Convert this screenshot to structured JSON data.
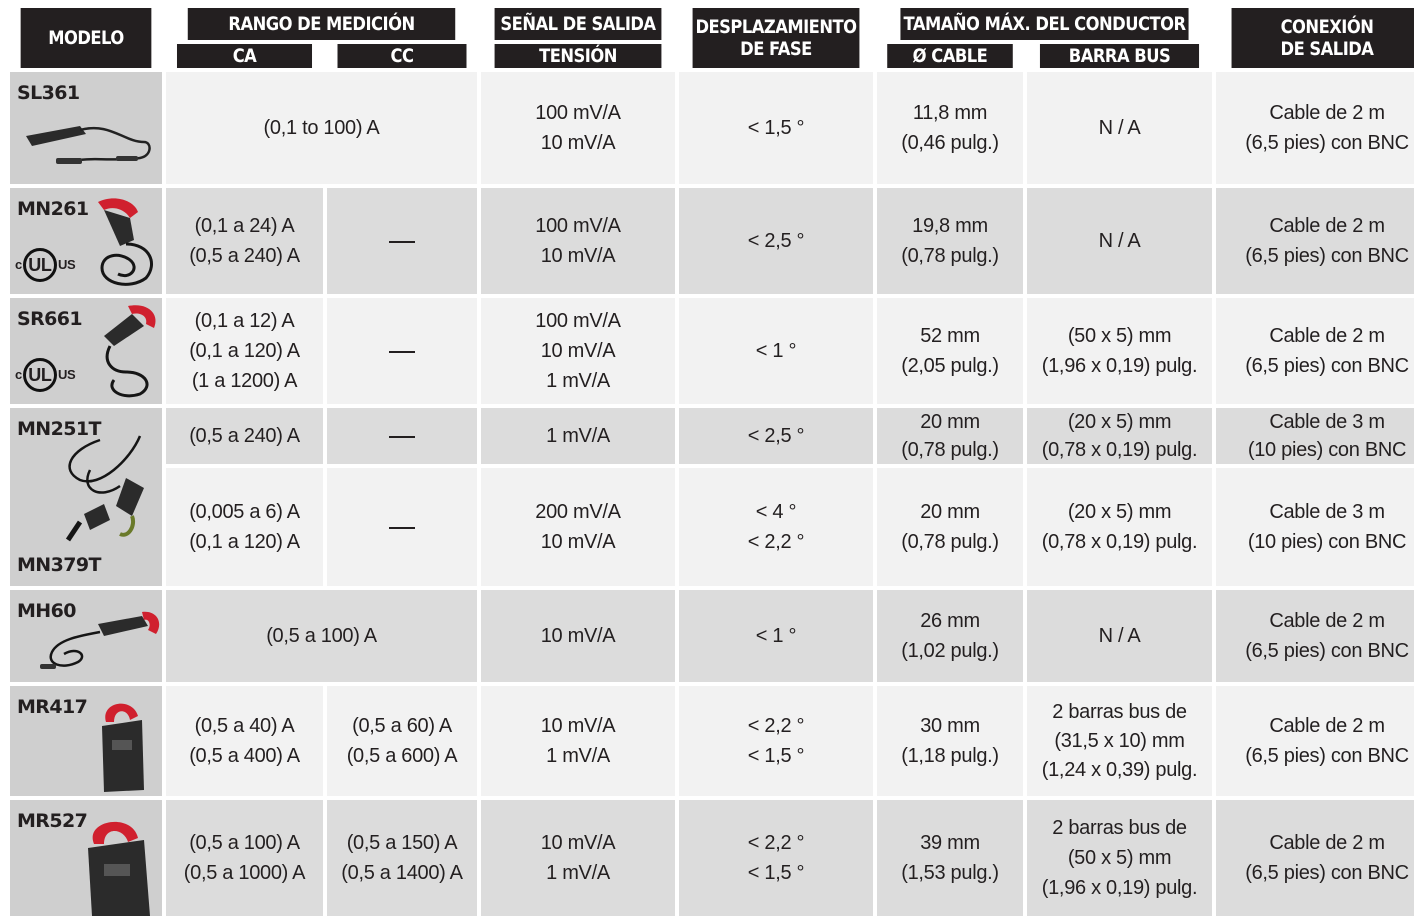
{
  "headers": {
    "model": "MODELO",
    "range": "RANGO DE MEDICIÓN",
    "ac": "CA",
    "dc": "CC",
    "signal": "SEÑAL DE SALIDA",
    "voltage": "TENSIÓN",
    "phase": [
      "DESPLAZAMIENTO",
      "DE FASE"
    ],
    "conductor": "TAMAÑO MÁX. DEL CONDUCTOR",
    "cable": "Ø CABLE",
    "busbar": "BARRA BUS",
    "connection": [
      "CONEXIÓN",
      "DE SALIDA"
    ]
  },
  "rows": [
    {
      "model": "SL361",
      "range_merged": "(0,1 to 100) A",
      "voltage": [
        "100 mV/A",
        "10 mV/A"
      ],
      "phase": [
        "< 1,5 °"
      ],
      "cable": [
        "11,8 mm",
        "(0,46 pulg.)"
      ],
      "busbar": [
        "N / A"
      ],
      "connection": [
        "Cable de 2 m",
        "(6,5 pies) con BNC"
      ]
    },
    {
      "model": "MN261",
      "ul": true,
      "ac": [
        "(0,1 a 24) A",
        "(0,5 a 240) A"
      ],
      "dc": "—",
      "voltage": [
        "100 mV/A",
        "10 mV/A"
      ],
      "phase": [
        "< 2,5 °"
      ],
      "cable": [
        "19,8 mm",
        "(0,78 pulg.)"
      ],
      "busbar": [
        "N / A"
      ],
      "connection": [
        "Cable de 2 m",
        "(6,5 pies) con BNC"
      ]
    },
    {
      "model": "SR661",
      "ul": true,
      "ac": [
        "(0,1 a 12) A",
        "(0,1 a 120) A",
        "(1 a 1200) A"
      ],
      "dc": "—",
      "voltage": [
        "100 mV/A",
        "10 mV/A",
        "1 mV/A"
      ],
      "phase": [
        "< 1 °"
      ],
      "cable": [
        "52 mm",
        "(2,05 pulg.)"
      ],
      "busbar": [
        "(50 x 5) mm",
        "(1,96 x 0,19) pulg."
      ],
      "connection": [
        "Cable de 2 m",
        "(6,5 pies) con BNC"
      ]
    },
    {
      "model": "MN251T",
      "model_bottom": "MN379T",
      "ac": [
        "(0,5 a 240) A"
      ],
      "dc": "—",
      "voltage": [
        "1 mV/A"
      ],
      "phase": [
        "< 2,5 °"
      ],
      "cable": [
        "20 mm",
        "(0,78 pulg.)"
      ],
      "busbar": [
        "(20 x 5) mm",
        "(0,78 x 0,19) pulg."
      ],
      "connection": [
        "Cable de 3 m",
        "(10 pies) con BNC"
      ]
    },
    {
      "ac": [
        "(0,005 a 6) A",
        "(0,1 a 120) A"
      ],
      "dc": "—",
      "voltage": [
        "200 mV/A",
        "10 mV/A"
      ],
      "phase": [
        "< 4 °",
        "< 2,2 °"
      ],
      "cable": [
        "20 mm",
        "(0,78 pulg.)"
      ],
      "busbar": [
        "(20 x 5) mm",
        "(0,78 x 0,19) pulg."
      ],
      "connection": [
        "Cable de 3 m",
        "(10 pies) con BNC"
      ]
    },
    {
      "model": "MH60",
      "range_merged": "(0,5 a 100) A",
      "voltage": [
        "10 mV/A"
      ],
      "phase": [
        "< 1 °"
      ],
      "cable": [
        "26 mm",
        "(1,02 pulg.)"
      ],
      "busbar": [
        "N / A"
      ],
      "connection": [
        "Cable de 2 m",
        "(6,5 pies) con BNC"
      ]
    },
    {
      "model": "MR417",
      "ac": [
        "(0,5 a 40) A",
        "(0,5 a 400) A"
      ],
      "dc": [
        "(0,5 a 60) A",
        "(0,5 a 600) A"
      ],
      "voltage": [
        "10 mV/A",
        "1 mV/A"
      ],
      "phase": [
        "< 2,2 °",
        "< 1,5 °"
      ],
      "cable": [
        "30 mm",
        "(1,18 pulg.)"
      ],
      "busbar": [
        "2 barras bus de",
        "(31,5 x 10) mm",
        "(1,24 x 0,39) pulg."
      ],
      "connection": [
        "Cable de 2 m",
        "(6,5 pies) con BNC"
      ]
    },
    {
      "model": "MR527",
      "ac": [
        "(0,5 a 100) A",
        "(0,5 a 1000) A"
      ],
      "dc": [
        "(0,5 a 150) A",
        "(0,5 a 1400) A"
      ],
      "voltage": [
        "10 mV/A",
        "1 mV/A"
      ],
      "phase": [
        "< 2,2 °",
        "< 1,5 °"
      ],
      "cable": [
        "39 mm",
        "(1,53 pulg.)"
      ],
      "busbar": [
        "2 barras bus de",
        "(50 x 5) mm",
        "(1,96 x 0,19) pulg."
      ],
      "connection": [
        "Cable de 2 m",
        "(6,5 pies) con BNC"
      ]
    }
  ],
  "ul_mark": {
    "left": "c",
    "center": "UL",
    "right": "US"
  },
  "colors": {
    "header": "#231f20",
    "model_cell": "#cfcfcf",
    "band_light": "#f2f2f2",
    "band_dark": "#dcdcdc",
    "clamp_red": "#d0202e"
  }
}
